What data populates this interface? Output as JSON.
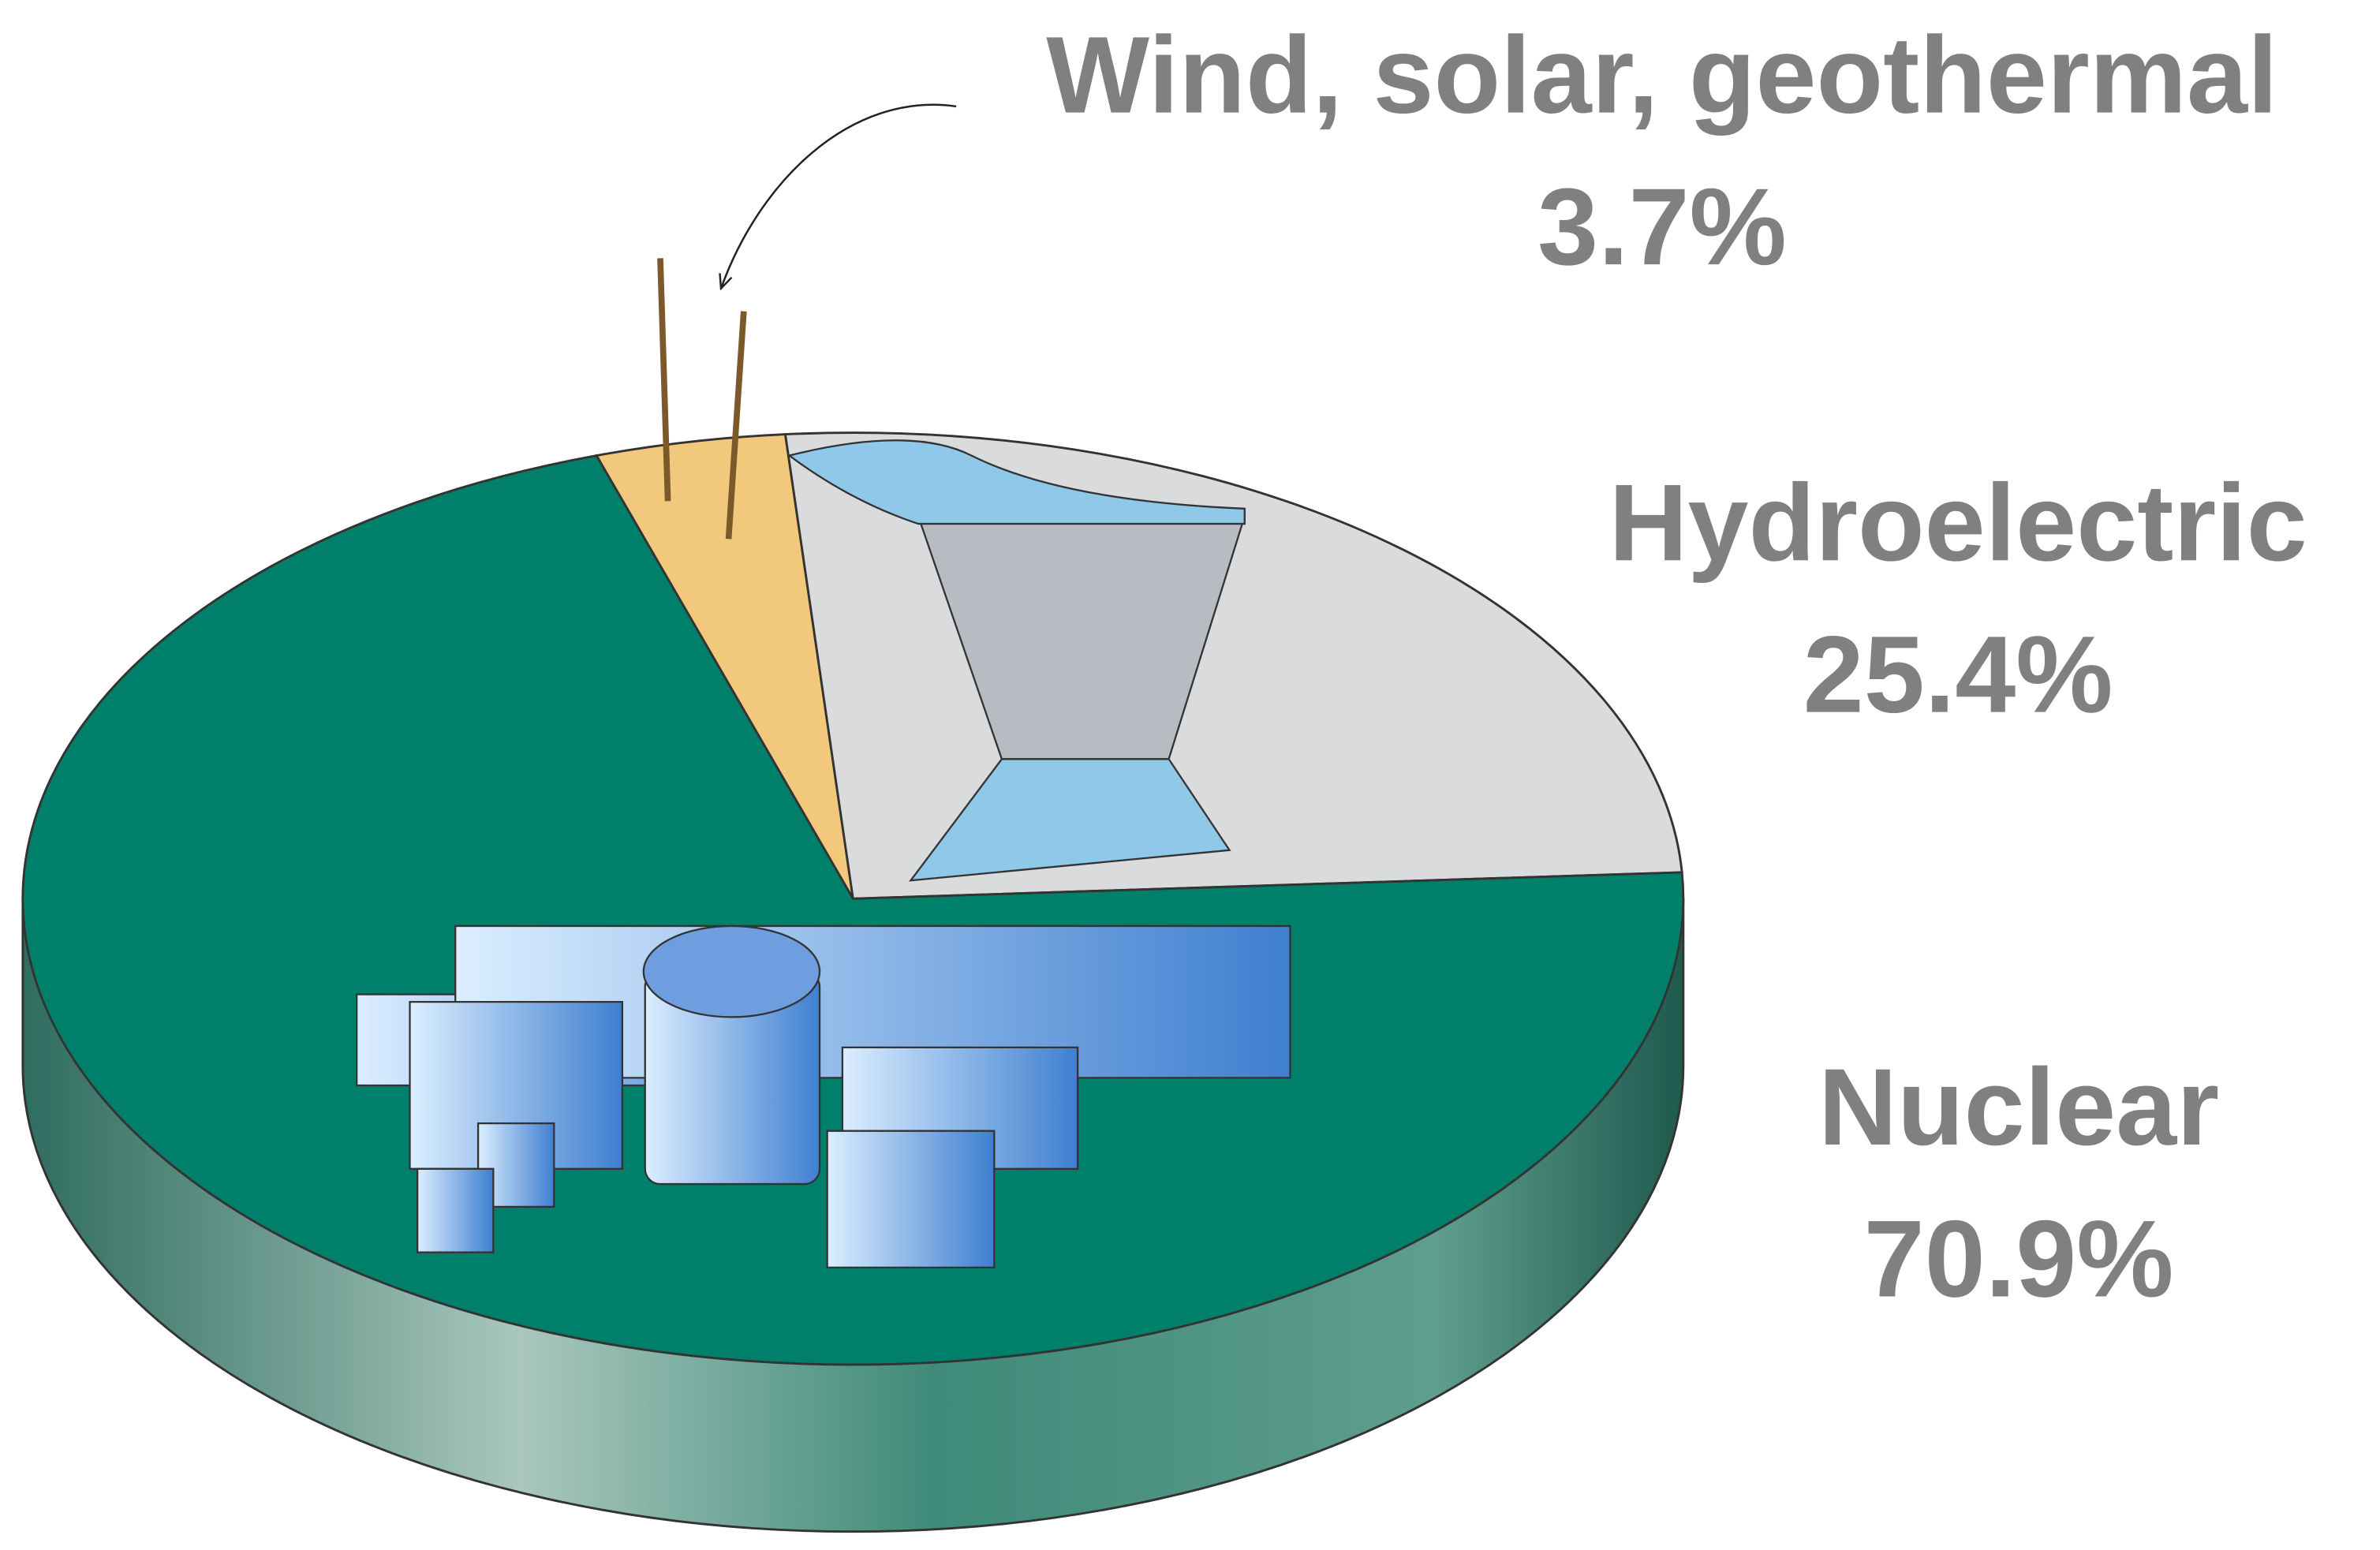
{
  "chart_data": {
    "type": "pie",
    "categories": [
      "Wind, solar, geothermal",
      "Hydroelectric",
      "Nuclear"
    ],
    "values": [
      3.7,
      25.4,
      70.9
    ],
    "value_labels": [
      "3.7%",
      "25.4%",
      "70.9%"
    ],
    "colors": [
      "#f2c97c",
      "#d9dbdd",
      "#00806a"
    ]
  }
}
